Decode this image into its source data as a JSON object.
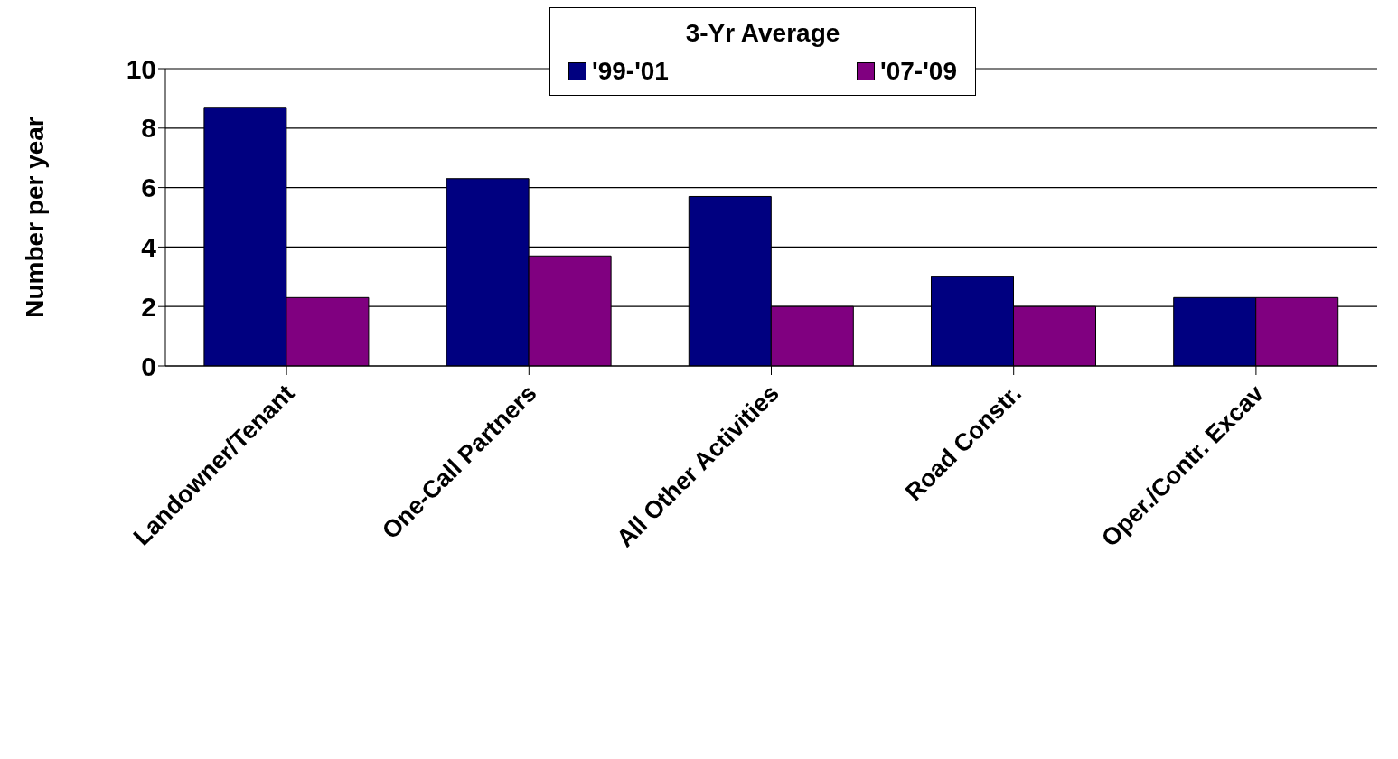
{
  "chart_data": {
    "type": "bar",
    "ylabel": "Number per year",
    "legend_title": "3-Yr Average",
    "categories": [
      "Landowner/Tenant",
      "One-Call Partners",
      "All Other Activities",
      "Road Constr.",
      "Oper./Contr. Excav"
    ],
    "series": [
      {
        "name": "'99-'01",
        "color": "#000080",
        "values": [
          8.7,
          6.3,
          5.7,
          3.0,
          2.3
        ]
      },
      {
        "name": "'07-'09",
        "color": "#800080",
        "values": [
          2.3,
          3.7,
          2.0,
          2.0,
          2.3
        ]
      }
    ],
    "ylim": [
      0,
      10
    ],
    "yticks": [
      0,
      2,
      4,
      6,
      8,
      10
    ],
    "grid": "y",
    "legend": "top"
  }
}
